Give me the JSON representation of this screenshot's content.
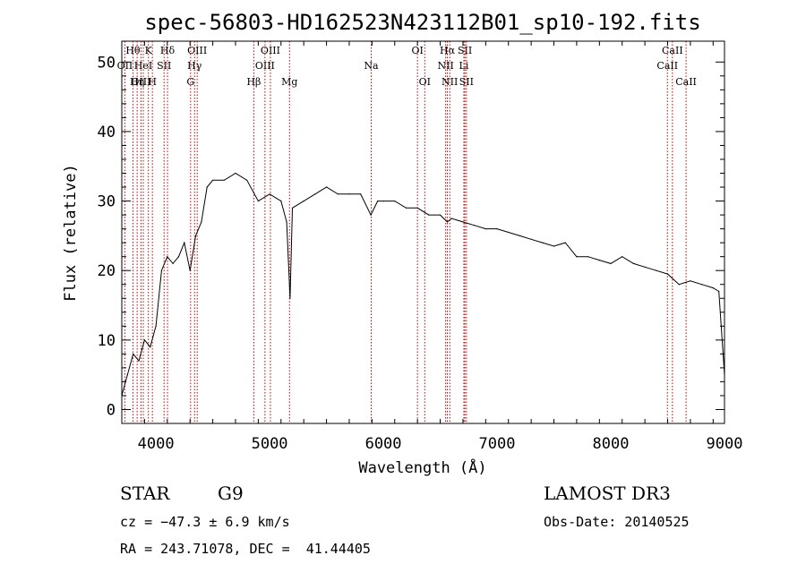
{
  "chart_data": {
    "type": "line",
    "title": "spec-56803-HD162523N423112B01_sp10-192.fits",
    "xlabel": "Wavelength (Å)",
    "ylabel": "Flux (relative)",
    "xlim": [
      3700,
      9000
    ],
    "ylim": [
      -2,
      53
    ],
    "xticks": [
      4000,
      5000,
      6000,
      7000,
      8000,
      9000
    ],
    "yticks": [
      0,
      10,
      20,
      30,
      40,
      50
    ],
    "series": [
      {
        "name": "spectrum",
        "x": [
          3700,
          3750,
          3800,
          3850,
          3900,
          3950,
          4000,
          4050,
          4100,
          4150,
          4200,
          4250,
          4300,
          4350,
          4400,
          4450,
          4500,
          4600,
          4700,
          4800,
          4900,
          5000,
          5100,
          5150,
          5180,
          5200,
          5300,
          5400,
          5500,
          5600,
          5700,
          5800,
          5890,
          5950,
          6000,
          6100,
          6200,
          6300,
          6400,
          6500,
          6563,
          6600,
          6700,
          6800,
          6900,
          7000,
          7100,
          7200,
          7300,
          7400,
          7500,
          7600,
          7700,
          7800,
          7900,
          8000,
          8100,
          8200,
          8300,
          8400,
          8500,
          8600,
          8700,
          8800,
          8900,
          8950,
          9000
        ],
        "y": [
          2,
          5,
          8,
          7,
          10,
          9,
          12,
          20,
          22,
          21,
          22,
          24,
          20,
          25,
          27,
          32,
          33,
          33,
          34,
          33,
          30,
          31,
          30,
          27,
          16,
          29,
          30,
          31,
          32,
          31,
          31,
          31,
          28,
          30,
          30,
          30,
          29,
          29,
          28,
          28,
          27,
          27.5,
          27,
          26.5,
          26,
          26,
          25.5,
          25,
          24.5,
          24,
          23.5,
          24,
          22,
          22,
          21.5,
          21,
          22,
          21,
          20.5,
          20,
          19.5,
          18,
          18.5,
          18,
          17.5,
          17,
          5
        ]
      }
    ],
    "spectral_lines": [
      {
        "label": "Hθ",
        "wavelength": 3798,
        "row": 1
      },
      {
        "label": "OII",
        "wavelength": 3727,
        "row": 2
      },
      {
        "label": "OIII",
        "wavelength": 3869,
        "row": 3
      },
      {
        "label": "K",
        "wavelength": 3934,
        "row": 1
      },
      {
        "label": "HeI",
        "wavelength": 3889,
        "row": 2
      },
      {
        "label": "Hη",
        "wavelength": 3835,
        "row": 3
      },
      {
        "label": "SII",
        "wavelength": 4072,
        "row": 2
      },
      {
        "label": "H",
        "wavelength": 3969,
        "row": 3
      },
      {
        "label": "Hδ",
        "wavelength": 4102,
        "row": 1
      },
      {
        "label": "OIII",
        "wavelength": 4363,
        "row": 1
      },
      {
        "label": "Hγ",
        "wavelength": 4340,
        "row": 2
      },
      {
        "label": "G",
        "wavelength": 4305,
        "row": 3
      },
      {
        "label": "OIII",
        "wavelength": 5007,
        "row": 1
      },
      {
        "label": "OIII",
        "wavelength": 4959,
        "row": 2
      },
      {
        "label": "Hβ",
        "wavelength": 4861,
        "row": 3
      },
      {
        "label": "Mg",
        "wavelength": 5175,
        "row": 3
      },
      {
        "label": "Na",
        "wavelength": 5893,
        "row": 2
      },
      {
        "label": "OI",
        "wavelength": 6300,
        "row": 1
      },
      {
        "label": "OI",
        "wavelength": 6364,
        "row": 3
      },
      {
        "label": "Hα",
        "wavelength": 6563,
        "row": 1
      },
      {
        "label": "NII",
        "wavelength": 6548,
        "row": 2
      },
      {
        "label": "NII",
        "wavelength": 6584,
        "row": 3
      },
      {
        "label": "SII",
        "wavelength": 6717,
        "row": 1
      },
      {
        "label": "Li",
        "wavelength": 6708,
        "row": 2
      },
      {
        "label": "SII",
        "wavelength": 6731,
        "row": 3
      },
      {
        "label": "CaII",
        "wavelength": 8542,
        "row": 1
      },
      {
        "label": "CaII",
        "wavelength": 8498,
        "row": 2
      },
      {
        "label": "CaII",
        "wavelength": 8662,
        "row": 3
      }
    ]
  },
  "info": {
    "class_label": "STAR",
    "subclass": "G9",
    "survey": "LAMOST DR3",
    "cz": "cz = −47.3 ± 6.9 km/s",
    "obs_date": "Obs-Date: 20140525",
    "coords": "RA = 243.71078, DEC =  41.44405"
  }
}
